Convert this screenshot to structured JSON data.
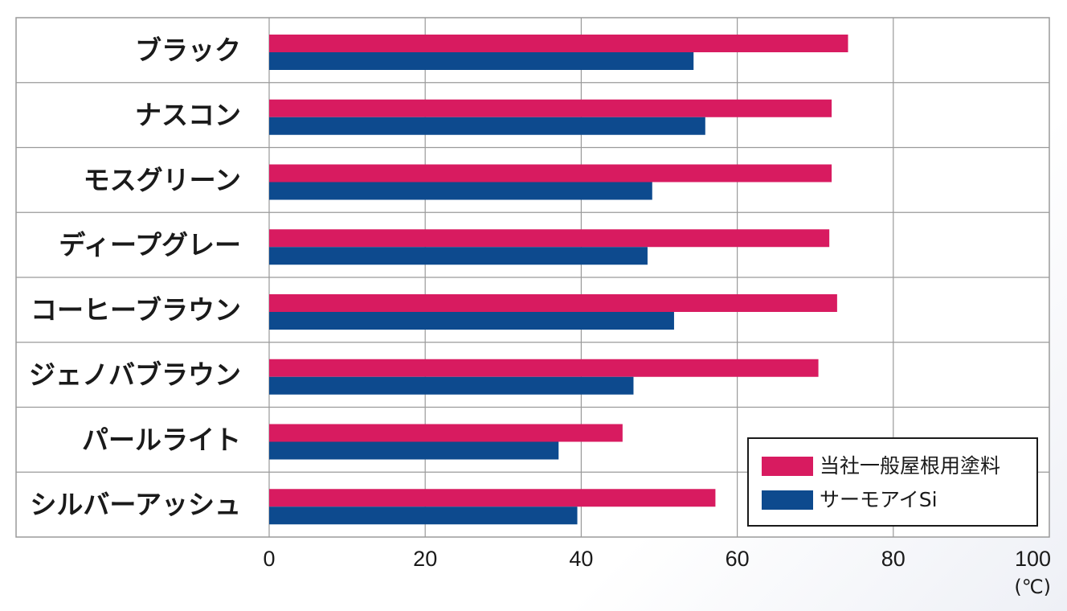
{
  "chart_data": {
    "type": "bar",
    "orientation": "horizontal",
    "categories": [
      "ブラック",
      "ナスコン",
      "モスグリーン",
      "ディープグレー",
      "コーヒーブラウン",
      "ジェノバブラウン",
      "パールライト",
      "シルバーアッシュ"
    ],
    "series": [
      {
        "name": "当社一般屋根用塗料",
        "color": "#d81b60",
        "values": [
          74.2,
          72.1,
          72.1,
          71.8,
          72.8,
          70.4,
          45.3,
          57.2
        ]
      },
      {
        "name": "サーモアイSi",
        "color": "#0d4a8e",
        "values": [
          54.4,
          55.9,
          49.1,
          48.5,
          51.9,
          46.7,
          37.1,
          39.5
        ]
      }
    ],
    "xlim": [
      0,
      100
    ],
    "xticks": [
      "0",
      "20",
      "40",
      "60",
      "80",
      "100"
    ],
    "unit": "(℃)",
    "grid": true,
    "legend_position": "bottom-right"
  }
}
